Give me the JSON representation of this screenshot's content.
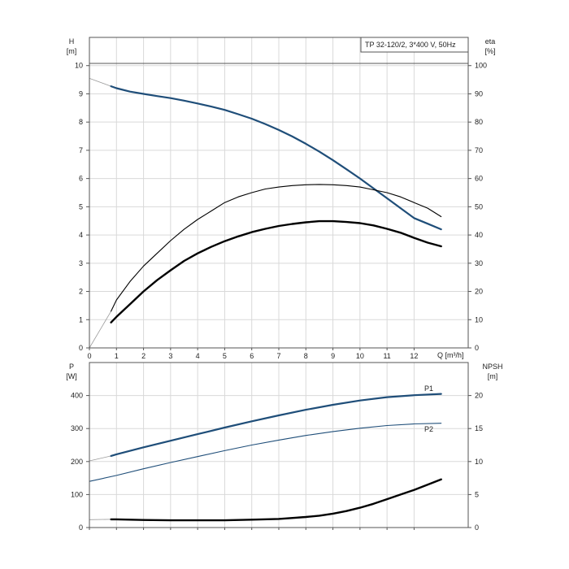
{
  "chart_data": [
    {
      "type": "line",
      "title": "TP 32-120/2, 3*400 V, 50Hz",
      "xlabel": "Q [m³/h]",
      "ylabel_left": "H",
      "ylabel_left_unit": "[m]",
      "ylabel_right": "eta",
      "ylabel_right_unit": "[%]",
      "xlim": [
        0,
        14
      ],
      "ylim_left": [
        0,
        11
      ],
      "ylim_right": [
        0,
        110
      ],
      "x_ticks": [
        0,
        1,
        2,
        3,
        4,
        5,
        6,
        7,
        8,
        9,
        10,
        11,
        12
      ],
      "y_ticks_left": [
        0,
        1,
        2,
        3,
        4,
        5,
        6,
        7,
        8,
        9,
        10
      ],
      "y_ticks_right": [
        0,
        10,
        20,
        30,
        40,
        50,
        60,
        70,
        80,
        90,
        100
      ],
      "grid": true,
      "series": [
        {
          "axis": "left",
          "color": "#1f4e79",
          "x": [
            0.8,
            1,
            1.5,
            2,
            2.5,
            3,
            3.5,
            4,
            4.5,
            5,
            5.5,
            6,
            6.5,
            7,
            7.5,
            8,
            8.5,
            9,
            9.5,
            10,
            10.5,
            11,
            11.5,
            12,
            12.5,
            13
          ],
          "y": [
            9.27,
            9.2,
            9.08,
            9.0,
            8.92,
            8.85,
            8.76,
            8.66,
            8.55,
            8.43,
            8.28,
            8.12,
            7.93,
            7.72,
            7.49,
            7.23,
            6.95,
            6.65,
            6.33,
            6.0,
            5.65,
            5.3,
            4.95,
            4.6,
            4.4,
            4.2
          ],
          "x_ext": [
            0,
            0.8
          ],
          "y_ext": [
            9.55,
            9.27
          ]
        },
        {
          "axis": "right",
          "color": "#000000",
          "x": [
            0.8,
            1,
            1.5,
            2,
            2.5,
            3,
            3.5,
            4,
            4.5,
            5,
            5.5,
            6,
            6.5,
            7,
            7.5,
            8,
            8.5,
            9,
            9.5,
            10,
            10.5,
            11,
            11.5,
            12,
            12.5,
            13
          ],
          "y": [
            13,
            17,
            23.5,
            29,
            33.5,
            38,
            42,
            45.5,
            48.5,
            51.5,
            53.5,
            55,
            56.3,
            57,
            57.5,
            57.8,
            57.9,
            57.8,
            57.5,
            57,
            56,
            55,
            53.5,
            51.5,
            49.5,
            46.5
          ],
          "x_ext": [
            0,
            0.8
          ],
          "y_ext": [
            0,
            13
          ]
        },
        {
          "axis": "right",
          "color": "#000000",
          "x": [
            0.8,
            1,
            1.5,
            2,
            2.5,
            3,
            3.5,
            4,
            4.5,
            5,
            5.5,
            6,
            6.5,
            7,
            7.5,
            8,
            8.5,
            9,
            9.5,
            10,
            10.5,
            11,
            11.5,
            12,
            12.5,
            13
          ],
          "y": [
            9,
            11,
            15.5,
            20,
            24,
            27.5,
            30.8,
            33.5,
            35.8,
            37.8,
            39.5,
            41,
            42.2,
            43.2,
            43.9,
            44.5,
            44.9,
            44.9,
            44.6,
            44.2,
            43.4,
            42.2,
            40.8,
            39,
            37.3,
            36
          ],
          "x_ext": [],
          "y_ext": []
        }
      ]
    },
    {
      "type": "line",
      "xlabel": "",
      "ylabel_left": "P",
      "ylabel_left_unit": "[W]",
      "ylabel_right": "NPSH",
      "ylabel_right_unit": "[m]",
      "xlim": [
        0,
        14
      ],
      "ylim_left": [
        0,
        500
      ],
      "ylim_right": [
        0,
        25
      ],
      "y_ticks_left": [
        0,
        100,
        200,
        300,
        400
      ],
      "y_ticks_right": [
        0,
        5,
        10,
        15,
        20
      ],
      "grid": true,
      "series": [
        {
          "name": "P1",
          "axis": "left",
          "color": "#1f4e79",
          "x": [
            0.8,
            1,
            2,
            3,
            4,
            5,
            6,
            7,
            8,
            9,
            10,
            11,
            12,
            13
          ],
          "y": [
            217,
            222,
            243,
            263,
            283,
            303,
            322,
            340,
            357,
            372,
            385,
            395,
            401,
            405
          ],
          "x_ext": [
            0,
            0.8
          ],
          "y_ext": [
            202,
            217
          ]
        },
        {
          "name": "P2",
          "axis": "left",
          "color": "#1f4e79",
          "x": [
            0,
            1,
            2,
            3,
            4,
            5,
            6,
            7,
            8,
            9,
            10,
            11,
            12,
            13
          ],
          "y": [
            140,
            158,
            178,
            197,
            215,
            233,
            250,
            265,
            279,
            291,
            301,
            309,
            314,
            316
          ],
          "x_ext": [],
          "y_ext": []
        },
        {
          "axis": "right",
          "color": "#000000",
          "x": [
            0.8,
            1,
            2,
            3,
            4,
            5,
            6,
            7,
            8,
            8.5,
            9,
            9.5,
            10,
            10.5,
            11,
            11.5,
            12,
            12.5,
            13
          ],
          "y": [
            1.25,
            1.25,
            1.15,
            1.1,
            1.1,
            1.1,
            1.2,
            1.3,
            1.6,
            1.8,
            2.1,
            2.5,
            3.0,
            3.6,
            4.3,
            5.0,
            5.7,
            6.5,
            7.3
          ],
          "x_ext": [
            0,
            0.8
          ],
          "y_ext": [
            1.2,
            1.25
          ]
        }
      ]
    }
  ]
}
